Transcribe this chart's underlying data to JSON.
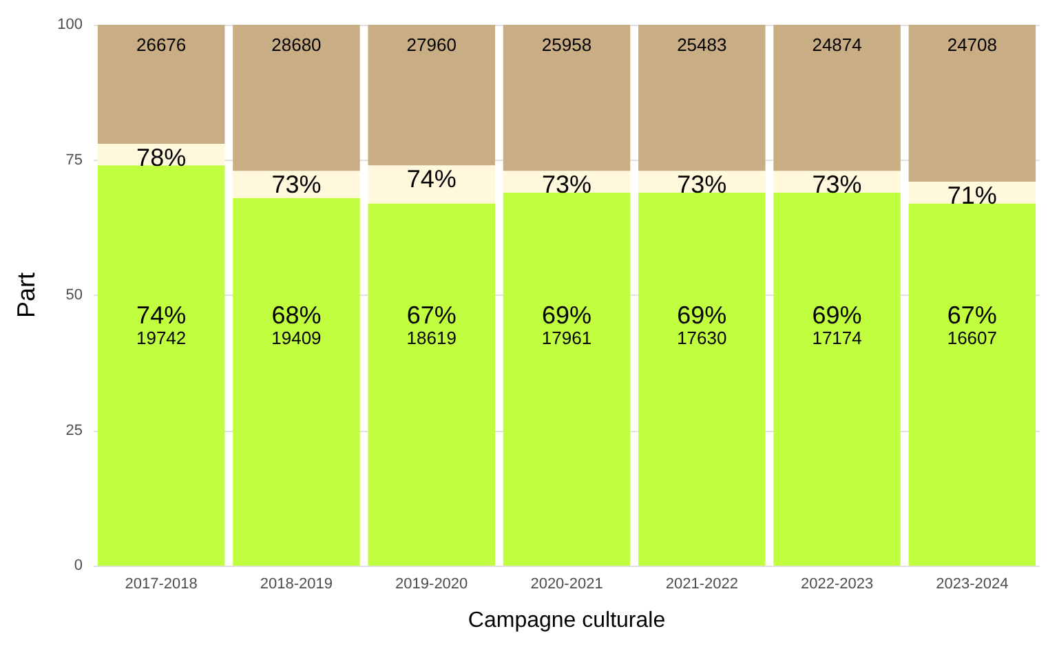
{
  "chart_data": {
    "type": "bar",
    "stacked": true,
    "xlabel": "Campagne culturale",
    "ylabel": "Part",
    "categories": [
      "2017-2018",
      "2018-2019",
      "2019-2020",
      "2020-2021",
      "2021-2022",
      "2022-2023",
      "2023-2024"
    ],
    "series": [
      {
        "color": "#c1fe3f",
        "values": [
          74,
          68,
          67,
          69,
          69,
          69,
          67
        ],
        "value_labels": [
          "74%\n19742",
          "68%\n19409",
          "67%\n18619",
          "69%\n17961",
          "69%\n17630",
          "69%\n17174",
          "67%\n16607"
        ]
      },
      {
        "color": "#fff8dc",
        "values": [
          4,
          5,
          7,
          4,
          4,
          4,
          4
        ]
      },
      {
        "color": "#c8ad85",
        "values": [
          22,
          27,
          26,
          27,
          27,
          27,
          29
        ]
      }
    ],
    "annotations": [
      {
        "text": "78%",
        "x": "2017-2018",
        "y": 78
      },
      {
        "text": "73%",
        "x": "2018-2019",
        "y": 73
      },
      {
        "text": "74%",
        "x": "2019-2020",
        "y": 74
      },
      {
        "text": "73%",
        "x": "2020-2021",
        "y": 73
      },
      {
        "text": "73%",
        "x": "2021-2022",
        "y": 73
      },
      {
        "text": "73%",
        "x": "2022-2023",
        "y": 73
      },
      {
        "text": "71%",
        "x": "2023-2024",
        "y": 71
      },
      {
        "text": "26676",
        "x": "2017-2018",
        "y": 100
      },
      {
        "text": "28680",
        "x": "2018-2019",
        "y": 100
      },
      {
        "text": "27960",
        "x": "2019-2020",
        "y": 100
      },
      {
        "text": "25958",
        "x": "2020-2021",
        "y": 100
      },
      {
        "text": "25483",
        "x": "2021-2022",
        "y": 100
      },
      {
        "text": "24874",
        "x": "2022-2023",
        "y": 100
      },
      {
        "text": "24708",
        "x": "2023-2024",
        "y": 100
      }
    ],
    "ylim": [
      0,
      100
    ],
    "yticks": [
      0,
      25,
      50,
      75,
      100
    ],
    "grid": "y"
  }
}
